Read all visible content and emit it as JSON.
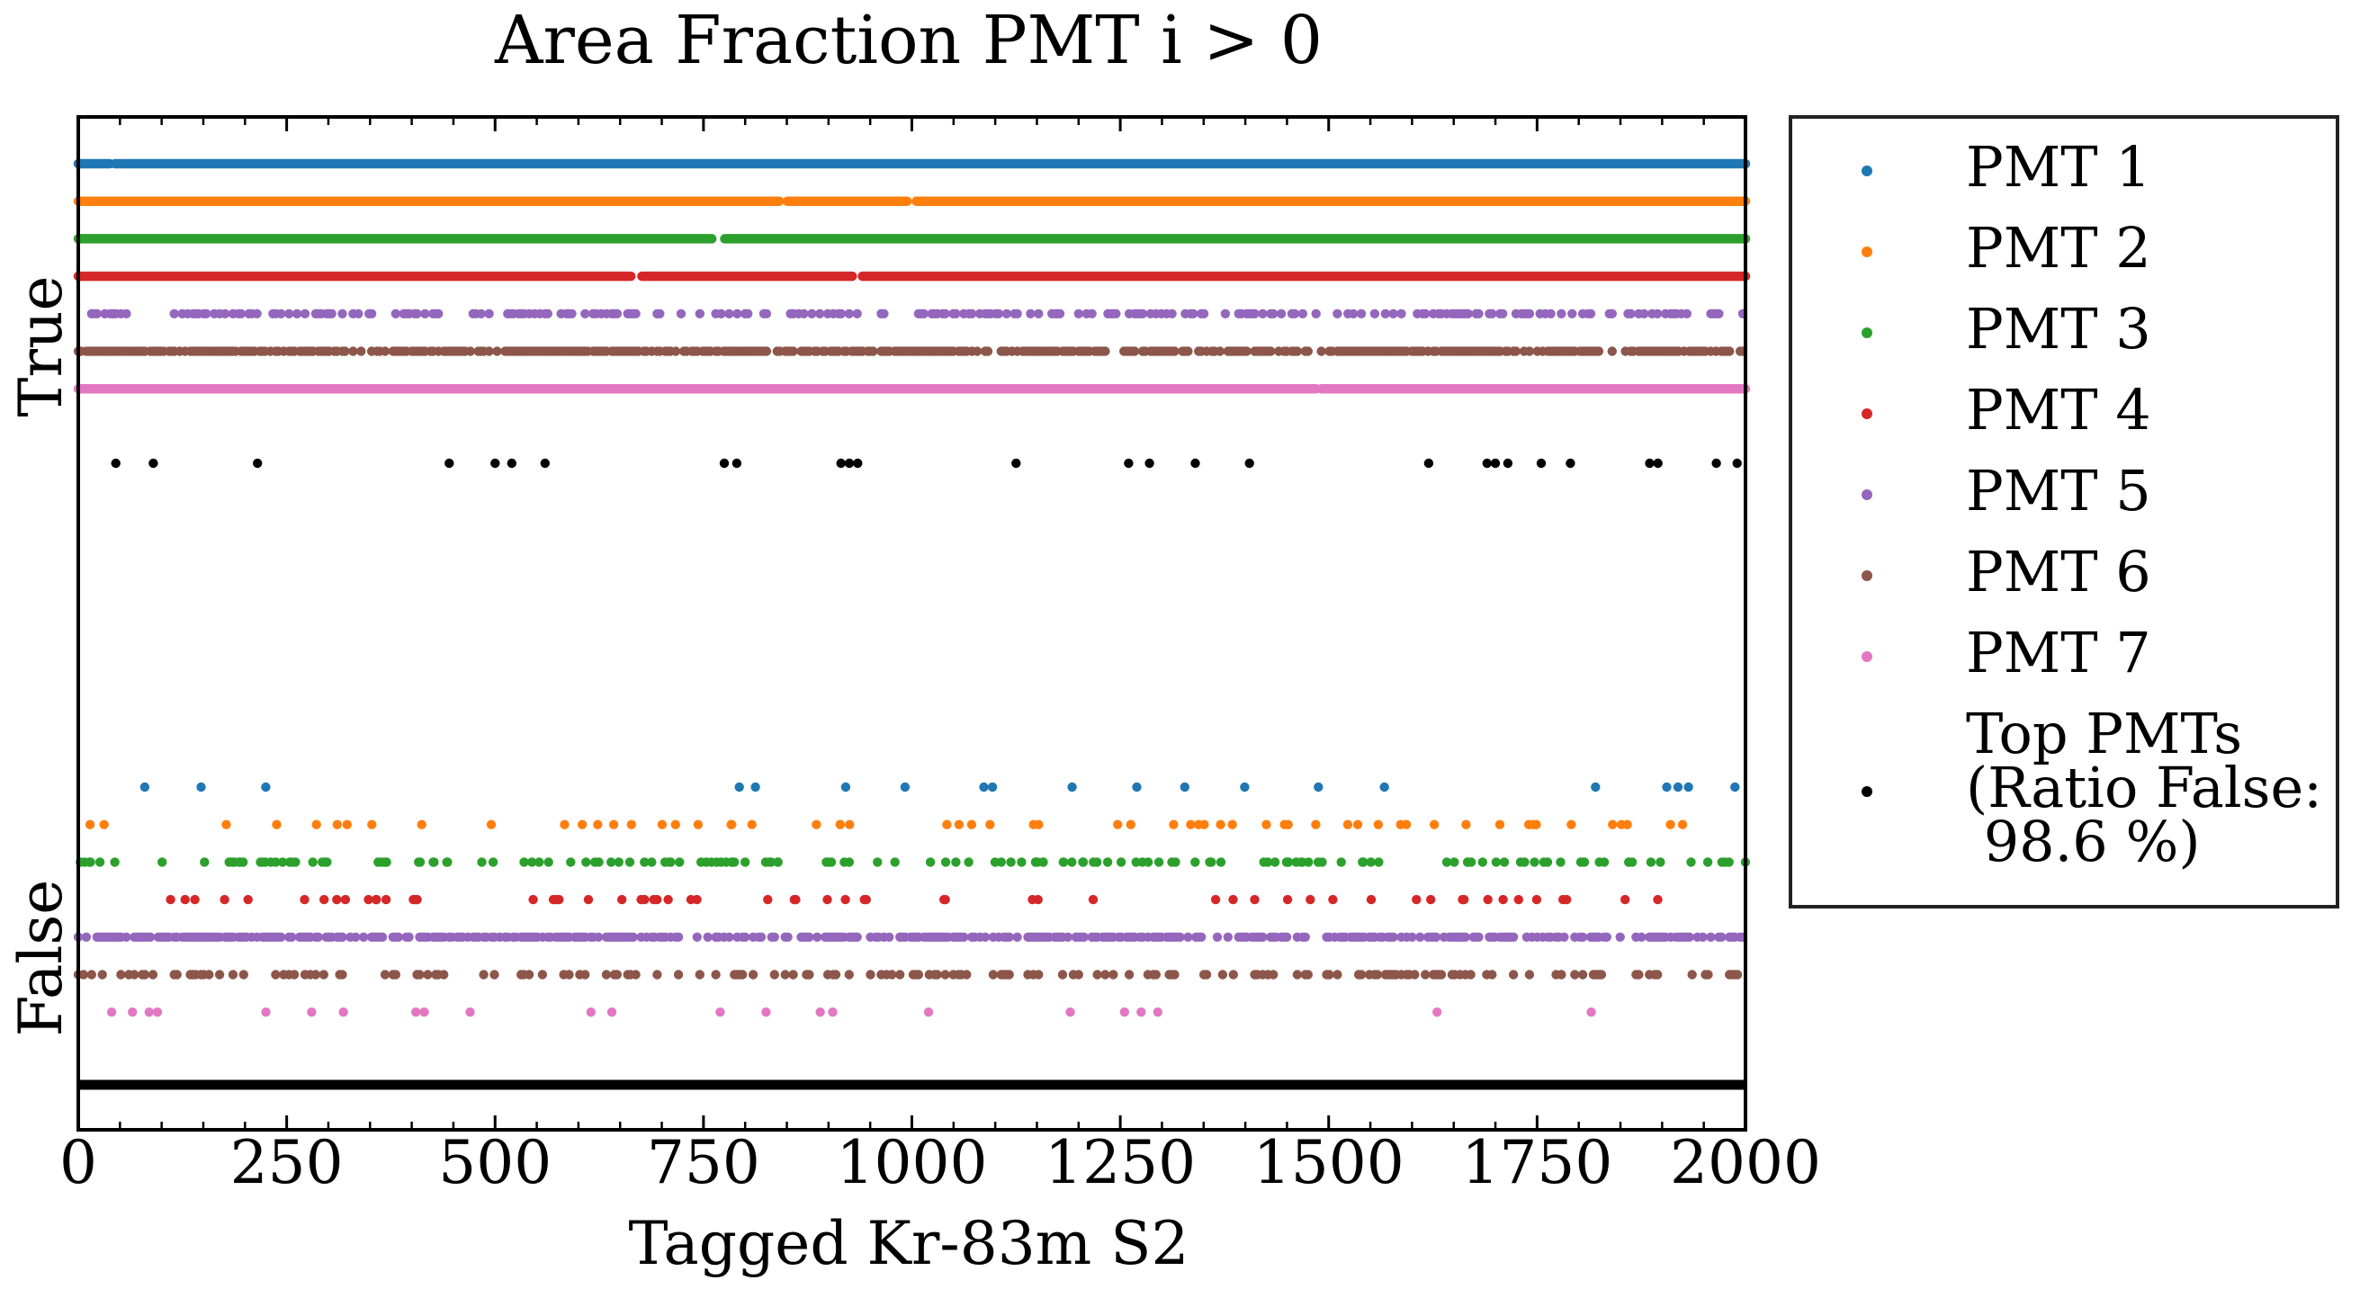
{
  "chart_data": {
    "type": "scatter",
    "title": "Area Fraction PMT i > 0",
    "xlabel": "Tagged Kr-83m S2",
    "ylabel": "",
    "xlim": [
      0,
      2000
    ],
    "x_ticks": [
      "0",
      "250",
      "500",
      "750",
      "1000",
      "1250",
      "1500",
      "1750",
      "2000"
    ],
    "x_tick_values": [
      0,
      250,
      500,
      750,
      1000,
      1250,
      1500,
      1750,
      2000
    ],
    "y_categories": [
      "True",
      "False"
    ],
    "grid": false,
    "legend_position": "outside-right",
    "series": [
      {
        "name": "PMT 1",
        "color": "#1f77b4",
        "true_fraction": 0.99,
        "false_fraction": 0.01
      },
      {
        "name": "PMT 2",
        "color": "#ff7f0e",
        "true_fraction": 0.97,
        "false_fraction": 0.03
      },
      {
        "name": "PMT 3",
        "color": "#2ca02c",
        "true_fraction": 0.99,
        "false_fraction": 0.08
      },
      {
        "name": "PMT 4",
        "color": "#d62728",
        "true_fraction": 0.97,
        "false_fraction": 0.03
      },
      {
        "name": "PMT 5",
        "color": "#9467bd",
        "true_fraction": 0.4,
        "false_fraction": 0.6
      },
      {
        "name": "PMT 6",
        "color": "#8c564b",
        "true_fraction": 0.75,
        "false_fraction": 0.25
      },
      {
        "name": "PMT 7",
        "color": "#e377c2",
        "true_fraction": 0.99,
        "false_fraction": 0.01,
        "false_x": [
          40,
          65,
          85,
          95,
          225,
          280,
          318,
          405,
          415,
          470,
          615,
          640,
          770,
          825,
          890,
          905,
          1020,
          1190,
          1255,
          1275,
          1295,
          1630,
          1815
        ]
      },
      {
        "name": "Top PMTs\n(Ratio False:\n 98.6 %)",
        "color": "#000000",
        "true_fraction": 0.014,
        "false_fraction": 0.986,
        "true_x": [
          45,
          90,
          215,
          445,
          500,
          520,
          560,
          775,
          790,
          915,
          925,
          935,
          1125,
          1260,
          1285,
          1340,
          1405,
          1620,
          1690,
          1700,
          1715,
          1755,
          1790,
          1885,
          1895,
          1965,
          1990
        ]
      }
    ]
  }
}
